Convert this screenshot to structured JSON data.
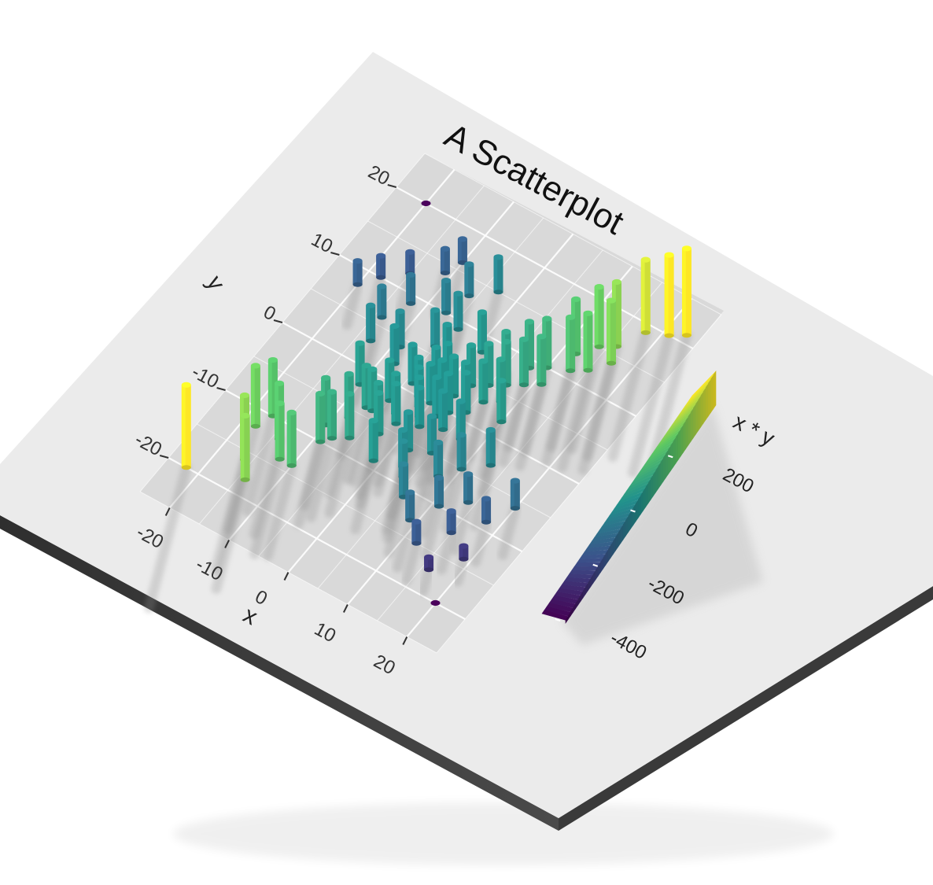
{
  "chart_data": {
    "type": "scatter",
    "render": "3d-extruded",
    "title": "A Scatterplot",
    "xlabel": "x",
    "ylabel": "y",
    "xlim": [
      -25,
      25
    ],
    "ylim": [
      -25,
      25
    ],
    "x_ticks": [
      "-20",
      "-10",
      "0",
      "10",
      "20"
    ],
    "y_ticks": [
      "-20",
      "-10",
      "0",
      "10",
      "20"
    ],
    "color_scale": {
      "name": "viridis",
      "title": "x * y",
      "domain": [
        -400,
        400
      ],
      "ticks": [
        "200",
        "0",
        "-200",
        "-400"
      ],
      "tick_values": [
        200,
        0,
        -200,
        -400
      ],
      "colors": [
        "#440154",
        "#3b528b",
        "#21918c",
        "#5ec962",
        "#fde725"
      ]
    },
    "points": [
      {
        "x": 20,
        "y": -20
      },
      {
        "x": -20,
        "y": 20
      },
      {
        "x": -22,
        "y": -20
      },
      {
        "x": -18,
        "y": -12
      },
      {
        "x": -17,
        "y": -10
      },
      {
        "x": -16,
        "y": -16
      },
      {
        "x": -14,
        "y": -18
      },
      {
        "x": -14,
        "y": -12
      },
      {
        "x": -12,
        "y": -14
      },
      {
        "x": -10,
        "y": -8
      },
      {
        "x": -10,
        "y": -14
      },
      {
        "x": -9,
        "y": -10
      },
      {
        "x": -8,
        "y": -6
      },
      {
        "x": -8,
        "y": -9
      },
      {
        "x": -7,
        "y": -4
      },
      {
        "x": -6,
        "y": -4
      },
      {
        "x": -5,
        "y": -2
      },
      {
        "x": -6,
        "y": -8
      },
      {
        "x": -4,
        "y": -5
      },
      {
        "x": -3,
        "y": -6
      },
      {
        "x": -3,
        "y": -3
      },
      {
        "x": -2,
        "y": -4
      },
      {
        "x": -2,
        "y": 0
      },
      {
        "x": -1,
        "y": -1
      },
      {
        "x": -1,
        "y": 2
      },
      {
        "x": 0,
        "y": -2
      },
      {
        "x": 0,
        "y": 0
      },
      {
        "x": 0,
        "y": 3
      },
      {
        "x": 1,
        "y": 1
      },
      {
        "x": 1,
        "y": -3
      },
      {
        "x": 2,
        "y": 2
      },
      {
        "x": 2,
        "y": -1
      },
      {
        "x": 3,
        "y": 4
      },
      {
        "x": 3,
        "y": 0
      },
      {
        "x": 4,
        "y": 2
      },
      {
        "x": 4,
        "y": -2
      },
      {
        "x": 5,
        "y": 5
      },
      {
        "x": 5,
        "y": 1
      },
      {
        "x": 6,
        "y": 3
      },
      {
        "x": 6,
        "y": 7
      },
      {
        "x": 7,
        "y": 6
      },
      {
        "x": 8,
        "y": 4
      },
      {
        "x": 8,
        "y": 9
      },
      {
        "x": 9,
        "y": 7
      },
      {
        "x": 10,
        "y": 10
      },
      {
        "x": 11,
        "y": 8
      },
      {
        "x": 12,
        "y": 13
      },
      {
        "x": 13,
        "y": 11
      },
      {
        "x": 14,
        "y": 15
      },
      {
        "x": 15,
        "y": 12
      },
      {
        "x": 16,
        "y": 16
      },
      {
        "x": 17,
        "y": 14
      },
      {
        "x": 18,
        "y": 19
      },
      {
        "x": 21,
        "y": 20
      },
      {
        "x": 23,
        "y": 21
      },
      {
        "x": -20,
        "y": 8
      },
      {
        "x": -18,
        "y": 10
      },
      {
        "x": -15,
        "y": 12
      },
      {
        "x": -14,
        "y": 6
      },
      {
        "x": -12,
        "y": 9
      },
      {
        "x": -11,
        "y": 14
      },
      {
        "x": -10,
        "y": 16
      },
      {
        "x": -9,
        "y": 4
      },
      {
        "x": -7,
        "y": 10
      },
      {
        "x": -6,
        "y": 13
      },
      {
        "x": -5,
        "y": 6
      },
      {
        "x": -4,
        "y": 9
      },
      {
        "x": -3,
        "y": 15
      },
      {
        "x": -2,
        "y": 5
      },
      {
        "x": 2,
        "y": -6
      },
      {
        "x": 3,
        "y": -8
      },
      {
        "x": 5,
        "y": -5
      },
      {
        "x": 6,
        "y": -11
      },
      {
        "x": 8,
        "y": -7
      },
      {
        "x": 9,
        "y": -13
      },
      {
        "x": 10,
        "y": -5
      },
      {
        "x": 11,
        "y": -10
      },
      {
        "x": 12,
        "y": -15
      },
      {
        "x": 14,
        "y": -8
      },
      {
        "x": 15,
        "y": -12
      },
      {
        "x": 16,
        "y": -17
      },
      {
        "x": 18,
        "y": -9
      },
      {
        "x": 19,
        "y": -14
      },
      {
        "x": 20,
        "y": -6
      },
      {
        "x": -8,
        "y": 2
      },
      {
        "x": 7,
        "y": -2
      },
      {
        "x": -4,
        "y": 1
      },
      {
        "x": 4,
        "y": -9
      },
      {
        "x": -13,
        "y": 3
      },
      {
        "x": 13,
        "y": -3
      },
      {
        "x": 10,
        "y": 2
      },
      {
        "x": -10,
        "y": -2
      },
      {
        "x": 1,
        "y": 8
      },
      {
        "x": -1,
        "y": -9
      }
    ]
  }
}
